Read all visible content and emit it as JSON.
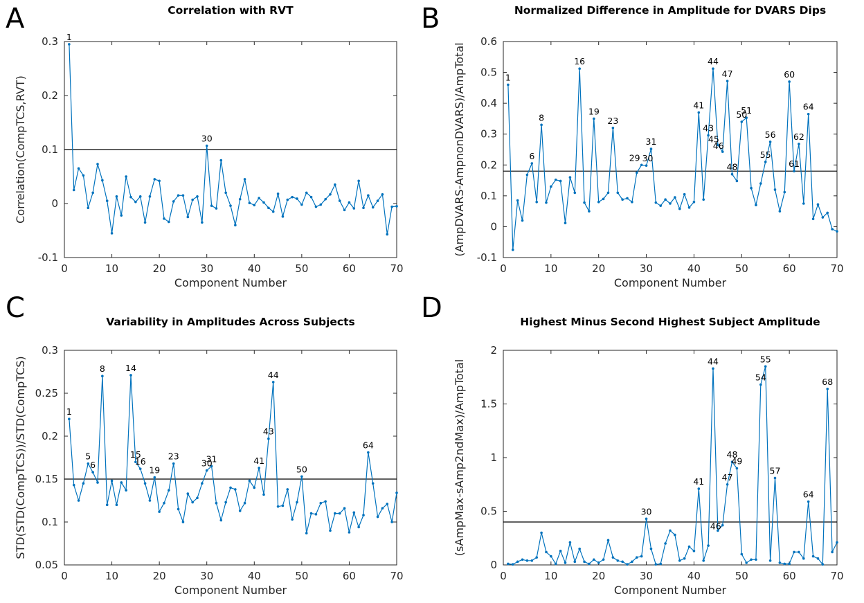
{
  "chart_data": [
    {
      "type": "line",
      "panel_letter": "A",
      "title": "Correlation with RVT",
      "xlabel": "Component Number",
      "ylabel": "Correlation(CompTCS,RVT)",
      "xlim": [
        0,
        70
      ],
      "ylim": [
        -0.1,
        0.3
      ],
      "xticks": [
        0,
        10,
        20,
        30,
        40,
        50,
        60,
        70
      ],
      "yticks": [
        -0.1,
        0,
        0.1,
        0.2,
        0.3
      ],
      "ytick_labels": [
        "-0.1",
        "0",
        "0.1",
        "0.2",
        "0.3"
      ],
      "threshold": 0.1,
      "color": "#0072BD",
      "x": [
        1,
        2,
        3,
        4,
        5,
        6,
        7,
        8,
        9,
        10,
        11,
        12,
        13,
        14,
        15,
        16,
        17,
        18,
        19,
        20,
        21,
        22,
        23,
        24,
        25,
        26,
        27,
        28,
        29,
        30,
        31,
        32,
        33,
        34,
        35,
        36,
        37,
        38,
        39,
        40,
        41,
        42,
        43,
        44,
        45,
        46,
        47,
        48,
        49,
        50,
        51,
        52,
        53,
        54,
        55,
        56,
        57,
        58,
        59,
        60,
        61,
        62,
        63,
        64,
        65,
        66,
        67,
        68,
        69,
        70
      ],
      "values": [
        0.295,
        0.025,
        0.065,
        0.052,
        -0.008,
        0.02,
        0.073,
        0.043,
        0.005,
        -0.055,
        0.013,
        -0.022,
        0.05,
        0.012,
        0.003,
        0.013,
        -0.035,
        0.013,
        0.045,
        0.042,
        -0.028,
        -0.034,
        0.004,
        0.015,
        0.015,
        -0.025,
        0.007,
        0.013,
        -0.035,
        0.107,
        -0.004,
        -0.009,
        0.08,
        0.02,
        -0.004,
        -0.04,
        0.008,
        0.045,
        0.001,
        -0.003,
        0.01,
        0.002,
        -0.008,
        -0.015,
        0.018,
        -0.024,
        0.007,
        0.012,
        0.009,
        -0.002,
        0.02,
        0.012,
        -0.006,
        -0.002,
        0.008,
        0.017,
        0.035,
        0.005,
        -0.012,
        0.002,
        -0.009,
        0.042,
        -0.008,
        0.015,
        -0.007,
        0.005,
        0.017,
        -0.057,
        -0.006,
        -0.005
      ],
      "annotations": [
        {
          "x": 1,
          "label": "1"
        },
        {
          "x": 30,
          "label": "30"
        }
      ]
    },
    {
      "type": "line",
      "panel_letter": "B",
      "title": "Normalized Difference in Amplitude for DVARS Dips",
      "xlabel": "Component Number",
      "ylabel": "(AmpDVARS-AmpnonDVARS)/AmpTotal",
      "xlim": [
        0,
        70
      ],
      "ylim": [
        -0.1,
        0.6
      ],
      "xticks": [
        0,
        10,
        20,
        30,
        40,
        50,
        60,
        70
      ],
      "yticks": [
        -0.1,
        0,
        0.1,
        0.2,
        0.3,
        0.4,
        0.5,
        0.6
      ],
      "ytick_labels": [
        "-0.1",
        "0",
        "0.1",
        "0.2",
        "0.3",
        "0.4",
        "0.5",
        "0.6"
      ],
      "threshold": 0.18,
      "color": "#0072BD",
      "x": [
        1,
        2,
        3,
        4,
        5,
        6,
        7,
        8,
        9,
        10,
        11,
        12,
        13,
        14,
        15,
        16,
        17,
        18,
        19,
        20,
        21,
        22,
        23,
        24,
        25,
        26,
        27,
        28,
        29,
        30,
        31,
        32,
        33,
        34,
        35,
        36,
        37,
        38,
        39,
        40,
        41,
        42,
        43,
        44,
        45,
        46,
        47,
        48,
        49,
        50,
        51,
        52,
        53,
        54,
        55,
        56,
        57,
        58,
        59,
        60,
        61,
        62,
        63,
        64,
        65,
        66,
        67,
        68,
        69,
        70
      ],
      "values": [
        0.46,
        -0.075,
        0.085,
        0.02,
        0.168,
        0.205,
        0.08,
        0.33,
        0.078,
        0.13,
        0.152,
        0.148,
        0.012,
        0.16,
        0.11,
        0.512,
        0.078,
        0.05,
        0.35,
        0.08,
        0.09,
        0.11,
        0.32,
        0.11,
        0.088,
        0.092,
        0.08,
        0.175,
        0.2,
        0.198,
        0.252,
        0.078,
        0.068,
        0.088,
        0.075,
        0.095,
        0.058,
        0.105,
        0.062,
        0.08,
        0.37,
        0.088,
        0.296,
        0.512,
        0.265,
        0.243,
        0.472,
        0.17,
        0.148,
        0.34,
        0.353,
        0.125,
        0.07,
        0.14,
        0.21,
        0.275,
        0.12,
        0.05,
        0.112,
        0.47,
        0.18,
        0.268,
        0.075,
        0.365,
        0.025,
        0.072,
        0.03,
        0.045,
        -0.008,
        -0.015
      ],
      "annotations": [
        {
          "x": 1,
          "label": "1"
        },
        {
          "x": 6,
          "label": "6"
        },
        {
          "x": 8,
          "label": "8"
        },
        {
          "x": 16,
          "label": "16"
        },
        {
          "x": 19,
          "label": "19"
        },
        {
          "x": 23,
          "label": "23"
        },
        {
          "x": 29,
          "label": "29"
        },
        {
          "x": 30,
          "label": "30"
        },
        {
          "x": 31,
          "label": "31"
        },
        {
          "x": 41,
          "label": "41"
        },
        {
          "x": 43,
          "label": "43"
        },
        {
          "x": 44,
          "label": "44"
        },
        {
          "x": 45,
          "label": "45"
        },
        {
          "x": 46,
          "label": "46"
        },
        {
          "x": 47,
          "label": "47"
        },
        {
          "x": 48,
          "label": "48"
        },
        {
          "x": 50,
          "label": "50"
        },
        {
          "x": 51,
          "label": "51"
        },
        {
          "x": 55,
          "label": "55"
        },
        {
          "x": 56,
          "label": "56"
        },
        {
          "x": 60,
          "label": "60"
        },
        {
          "x": 61,
          "label": "61"
        },
        {
          "x": 62,
          "label": "62"
        },
        {
          "x": 64,
          "label": "64"
        }
      ]
    },
    {
      "type": "line",
      "panel_letter": "C",
      "title": "Variability in Amplitudes Across Subjects",
      "xlabel": "Component Number",
      "ylabel": "STD(STD(CompTCS))/STD(CompTCS)",
      "xlim": [
        0,
        70
      ],
      "ylim": [
        0.05,
        0.3
      ],
      "xticks": [
        0,
        10,
        20,
        30,
        40,
        50,
        60,
        70
      ],
      "yticks": [
        0.05,
        0.1,
        0.15,
        0.2,
        0.25,
        0.3
      ],
      "ytick_labels": [
        "0.05",
        "0.1",
        "0.15",
        "0.2",
        "0.25",
        "0.3"
      ],
      "threshold": 0.15,
      "color": "#0072BD",
      "x": [
        1,
        2,
        3,
        4,
        5,
        6,
        7,
        8,
        9,
        10,
        11,
        12,
        13,
        14,
        15,
        16,
        17,
        18,
        19,
        20,
        21,
        22,
        23,
        24,
        25,
        26,
        27,
        28,
        29,
        30,
        31,
        32,
        33,
        34,
        35,
        36,
        37,
        38,
        39,
        40,
        41,
        42,
        43,
        44,
        45,
        46,
        47,
        48,
        49,
        50,
        51,
        52,
        53,
        54,
        55,
        56,
        57,
        58,
        59,
        60,
        61,
        62,
        63,
        64,
        65,
        66,
        67,
        68,
        69,
        70
      ],
      "values": [
        0.22,
        0.143,
        0.125,
        0.145,
        0.168,
        0.158,
        0.146,
        0.27,
        0.12,
        0.148,
        0.12,
        0.146,
        0.137,
        0.271,
        0.17,
        0.162,
        0.145,
        0.125,
        0.152,
        0.112,
        0.122,
        0.137,
        0.168,
        0.115,
        0.1,
        0.133,
        0.123,
        0.128,
        0.145,
        0.16,
        0.165,
        0.122,
        0.102,
        0.123,
        0.14,
        0.138,
        0.113,
        0.122,
        0.148,
        0.14,
        0.163,
        0.132,
        0.197,
        0.263,
        0.118,
        0.119,
        0.138,
        0.103,
        0.123,
        0.153,
        0.087,
        0.11,
        0.109,
        0.122,
        0.124,
        0.09,
        0.11,
        0.11,
        0.116,
        0.088,
        0.111,
        0.094,
        0.108,
        0.181,
        0.145,
        0.106,
        0.116,
        0.121,
        0.1,
        0.134
      ],
      "annotations": [
        {
          "x": 1,
          "label": "1"
        },
        {
          "x": 5,
          "label": "5"
        },
        {
          "x": 6,
          "label": "6"
        },
        {
          "x": 8,
          "label": "8"
        },
        {
          "x": 14,
          "label": "14"
        },
        {
          "x": 15,
          "label": "15"
        },
        {
          "x": 16,
          "label": "16"
        },
        {
          "x": 19,
          "label": "19"
        },
        {
          "x": 23,
          "label": "23"
        },
        {
          "x": 30,
          "label": "30"
        },
        {
          "x": 31,
          "label": "31"
        },
        {
          "x": 41,
          "label": "41"
        },
        {
          "x": 43,
          "label": "43"
        },
        {
          "x": 44,
          "label": "44"
        },
        {
          "x": 50,
          "label": "50"
        },
        {
          "x": 64,
          "label": "64"
        }
      ]
    },
    {
      "type": "line",
      "panel_letter": "D",
      "title": "Highest Minus Second Highest Subject Amplitude",
      "xlabel": "Component Number",
      "ylabel": "(sAmpMax-sAmp2ndMax)/AmpTotal",
      "xlim": [
        0,
        70
      ],
      "ylim": [
        0,
        2
      ],
      "xticks": [
        0,
        10,
        20,
        30,
        40,
        50,
        60,
        70
      ],
      "yticks": [
        0,
        0.5,
        1,
        1.5,
        2
      ],
      "ytick_labels": [
        "0",
        "0.5",
        "1",
        "1.5",
        "2"
      ],
      "threshold": 0.4,
      "color": "#0072BD",
      "x": [
        1,
        2,
        3,
        4,
        5,
        6,
        7,
        8,
        9,
        10,
        11,
        12,
        13,
        14,
        15,
        16,
        17,
        18,
        19,
        20,
        21,
        22,
        23,
        24,
        25,
        26,
        27,
        28,
        29,
        30,
        31,
        32,
        33,
        34,
        35,
        36,
        37,
        38,
        39,
        40,
        41,
        42,
        43,
        44,
        45,
        46,
        47,
        48,
        49,
        50,
        51,
        52,
        53,
        54,
        55,
        56,
        57,
        58,
        59,
        60,
        61,
        62,
        63,
        64,
        65,
        66,
        67,
        68,
        69,
        70
      ],
      "values": [
        0.01,
        0.005,
        0.03,
        0.05,
        0.04,
        0.04,
        0.07,
        0.3,
        0.12,
        0.08,
        0.01,
        0.13,
        0.02,
        0.21,
        0.03,
        0.15,
        0.03,
        0.01,
        0.05,
        0.02,
        0.05,
        0.23,
        0.07,
        0.04,
        0.03,
        0.005,
        0.03,
        0.07,
        0.08,
        0.43,
        0.15,
        0.005,
        0.01,
        0.2,
        0.32,
        0.28,
        0.04,
        0.06,
        0.17,
        0.13,
        0.71,
        0.04,
        0.18,
        1.83,
        0.32,
        0.37,
        0.75,
        0.96,
        0.9,
        0.1,
        0.02,
        0.05,
        0.05,
        1.68,
        1.85,
        0.04,
        0.81,
        0.02,
        0.01,
        0.01,
        0.12,
        0.12,
        0.06,
        0.59,
        0.08,
        0.06,
        0.005,
        1.64,
        0.12,
        0.21
      ],
      "annotations": [
        {
          "x": 30,
          "label": "30"
        },
        {
          "x": 41,
          "label": "41"
        },
        {
          "x": 44,
          "label": "44"
        },
        {
          "x": 46,
          "label": "46"
        },
        {
          "x": 47,
          "label": "47"
        },
        {
          "x": 48,
          "label": "48"
        },
        {
          "x": 49,
          "label": "49"
        },
        {
          "x": 54,
          "label": "54"
        },
        {
          "x": 55,
          "label": "55"
        },
        {
          "x": 57,
          "label": "57"
        },
        {
          "x": 64,
          "label": "64"
        },
        {
          "x": 68,
          "label": "68"
        }
      ]
    }
  ]
}
